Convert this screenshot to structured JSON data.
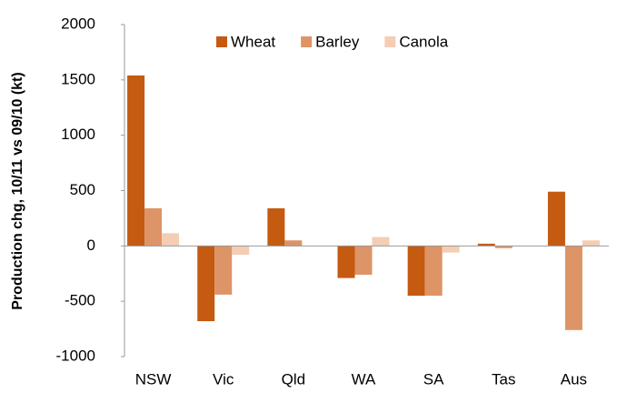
{
  "chart_data": {
    "type": "bar",
    "y_label": "Production chg, 10/11 vs 09/10 (kt)",
    "categories": [
      "NSW",
      "Vic",
      "Qld",
      "WA",
      "SA",
      "Tas",
      "Aus"
    ],
    "series": [
      {
        "name": "Wheat",
        "color": "#c55a11",
        "values": [
          1540,
          -680,
          340,
          -290,
          -450,
          20,
          490
        ]
      },
      {
        "name": "Barley",
        "color": "#dd9466",
        "values": [
          340,
          -440,
          50,
          -260,
          -450,
          -20,
          -760
        ]
      },
      {
        "name": "Canola",
        "color": "#f4cdb4",
        "values": [
          115,
          -80,
          0,
          80,
          -60,
          0,
          50
        ]
      }
    ],
    "ylim": [
      -1000,
      2000
    ],
    "yticks": [
      -1000,
      -500,
      0,
      500,
      1000,
      1500,
      2000
    ],
    "legend": "top"
  }
}
